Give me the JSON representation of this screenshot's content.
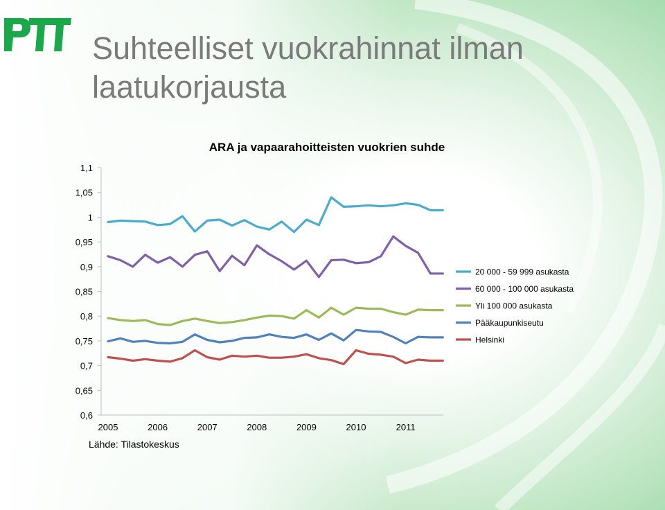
{
  "slide": {
    "title_line1": "Suhteelliset vuokrahinnat ilman",
    "title_line2": "laatukorjausta",
    "source": "Lähde: Tilastokeskus",
    "logo_text": "PTT"
  },
  "colors": {
    "logo_green": "#1aa84b",
    "background_swirl": "#8fd39a"
  },
  "chart_data": {
    "type": "line",
    "title": "ARA ja vapaarahoitteisten vuokrien suhde",
    "xlabel": "",
    "ylabel": "",
    "ylim": [
      0.6,
      1.1
    ],
    "y_ticks": [
      "1,1",
      "1,05",
      "1",
      "0,95",
      "0,9",
      "0,85",
      "0,8",
      "0,75",
      "0,7",
      "0,65",
      "0,6"
    ],
    "y_tick_values": [
      1.1,
      1.05,
      1.0,
      0.95,
      0.9,
      0.85,
      0.8,
      0.75,
      0.7,
      0.65,
      0.6
    ],
    "x_tick_labels": [
      "2005",
      "2006",
      "2007",
      "2008",
      "2009",
      "2010",
      "2011"
    ],
    "x_quarters": [
      "2005 Q1",
      "2005 Q2",
      "2005 Q3",
      "2005 Q4",
      "2006 Q1",
      "2006 Q2",
      "2006 Q3",
      "2006 Q4",
      "2007 Q1",
      "2007 Q2",
      "2007 Q3",
      "2007 Q4",
      "2008 Q1",
      "2008 Q2",
      "2008 Q3",
      "2008 Q4",
      "2009 Q1",
      "2009 Q2",
      "2009 Q3",
      "2009 Q4",
      "2010 Q1",
      "2010 Q2",
      "2010 Q3",
      "2010 Q4",
      "2011 Q1",
      "2011 Q2",
      "2011 Q3",
      "2011 Q4"
    ],
    "grid": false,
    "legend_position": "right",
    "series": [
      {
        "name": "20 000 - 59 999 asukasta",
        "color": "#4aaccc",
        "values": [
          0.99,
          0.993,
          0.992,
          0.991,
          0.984,
          0.986,
          1.002,
          0.971,
          0.993,
          0.995,
          0.983,
          0.994,
          0.981,
          0.975,
          0.991,
          0.97,
          0.995,
          0.984,
          1.04,
          1.021,
          1.022,
          1.024,
          1.022,
          1.024,
          1.028,
          1.025,
          1.014,
          1.014
        ]
      },
      {
        "name": "60 000 - 100 000 asukasta",
        "color": "#7f5fa8",
        "values": [
          0.921,
          0.913,
          0.9,
          0.924,
          0.908,
          0.919,
          0.9,
          0.924,
          0.931,
          0.891,
          0.922,
          0.903,
          0.943,
          0.925,
          0.911,
          0.894,
          0.912,
          0.879,
          0.913,
          0.914,
          0.907,
          0.909,
          0.921,
          0.961,
          0.942,
          0.928,
          0.886,
          0.886
        ]
      },
      {
        "name": "Yli 100 000 asukasta",
        "color": "#9bbb59",
        "values": [
          0.796,
          0.792,
          0.79,
          0.792,
          0.784,
          0.782,
          0.79,
          0.795,
          0.79,
          0.786,
          0.788,
          0.792,
          0.797,
          0.801,
          0.8,
          0.795,
          0.812,
          0.797,
          0.817,
          0.803,
          0.817,
          0.815,
          0.815,
          0.808,
          0.803,
          0.813,
          0.812,
          0.812
        ]
      },
      {
        "name": "Pääkaupunkiseutu",
        "color": "#4f81bd",
        "values": [
          0.749,
          0.755,
          0.748,
          0.75,
          0.746,
          0.745,
          0.748,
          0.763,
          0.752,
          0.747,
          0.75,
          0.756,
          0.757,
          0.763,
          0.758,
          0.756,
          0.763,
          0.752,
          0.765,
          0.751,
          0.772,
          0.769,
          0.768,
          0.758,
          0.745,
          0.758,
          0.757,
          0.757
        ]
      },
      {
        "name": "Helsinki",
        "color": "#c0504d",
        "values": [
          0.717,
          0.714,
          0.71,
          0.713,
          0.71,
          0.708,
          0.715,
          0.731,
          0.717,
          0.712,
          0.72,
          0.718,
          0.72,
          0.716,
          0.716,
          0.718,
          0.723,
          0.715,
          0.711,
          0.703,
          0.731,
          0.724,
          0.722,
          0.718,
          0.705,
          0.712,
          0.71,
          0.71
        ]
      }
    ]
  }
}
